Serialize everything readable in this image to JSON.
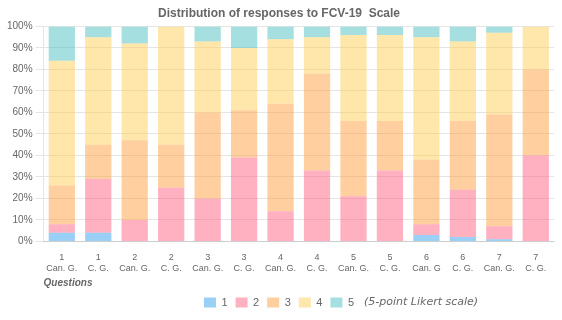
{
  "chart_data": {
    "type": "bar",
    "stacked": true,
    "title": "Distribution of responses to FCV-19  Scale",
    "xlabel": "Questions",
    "annotations": [
      "(5-point Likert scale)"
    ],
    "categories": [
      [
        "1",
        "Can. G."
      ],
      [
        "1",
        "C. G."
      ],
      [
        "2",
        "Can. G."
      ],
      [
        "2",
        "C. G."
      ],
      [
        "3",
        "Can. G."
      ],
      [
        "3",
        "C. G."
      ],
      [
        "4",
        "Can. G."
      ],
      [
        "4",
        "C. G."
      ],
      [
        "5",
        "Can. G."
      ],
      [
        "5",
        "C. G."
      ],
      [
        "6",
        "Can. G"
      ],
      [
        "6",
        "C. G."
      ],
      [
        "7",
        "Can. G."
      ],
      [
        "7",
        "C. G."
      ]
    ],
    "series": [
      {
        "name": "1",
        "values": [
          4,
          4,
          0,
          0,
          0,
          0,
          0,
          0,
          0,
          0,
          3,
          2,
          1,
          0
        ]
      },
      {
        "name": "2",
        "values": [
          4,
          25,
          10,
          25,
          20,
          39,
          14,
          33,
          21,
          33,
          5,
          22,
          6,
          40
        ]
      },
      {
        "name": "3",
        "values": [
          18,
          16,
          37,
          20,
          40,
          22,
          50,
          45,
          35,
          23,
          30,
          32,
          52,
          40
        ]
      },
      {
        "name": "4",
        "values": [
          58,
          50,
          45,
          55,
          33,
          29,
          30,
          17,
          40,
          40,
          57,
          37,
          38,
          20
        ]
      },
      {
        "name": "5",
        "values": [
          16,
          5,
          8,
          0,
          7,
          10,
          6,
          5,
          4,
          4,
          5,
          7,
          3,
          0
        ]
      }
    ],
    "ylim": [
      0,
      100
    ],
    "yticks": [
      {
        "value": 0,
        "label": "0%"
      },
      {
        "value": 10,
        "label": "10%"
      },
      {
        "value": 20,
        "label": "20%"
      },
      {
        "value": 30,
        "label": "30%"
      },
      {
        "value": 40,
        "label": "40%"
      },
      {
        "value": 50,
        "label": "50%"
      },
      {
        "value": 60,
        "label": "60%"
      },
      {
        "value": 70,
        "label": "70%"
      },
      {
        "value": 80,
        "label": "80%"
      },
      {
        "value": 90,
        "label": "90%"
      },
      {
        "value": 100,
        "label": "100%"
      }
    ],
    "grid": true,
    "legend": "bottom"
  }
}
